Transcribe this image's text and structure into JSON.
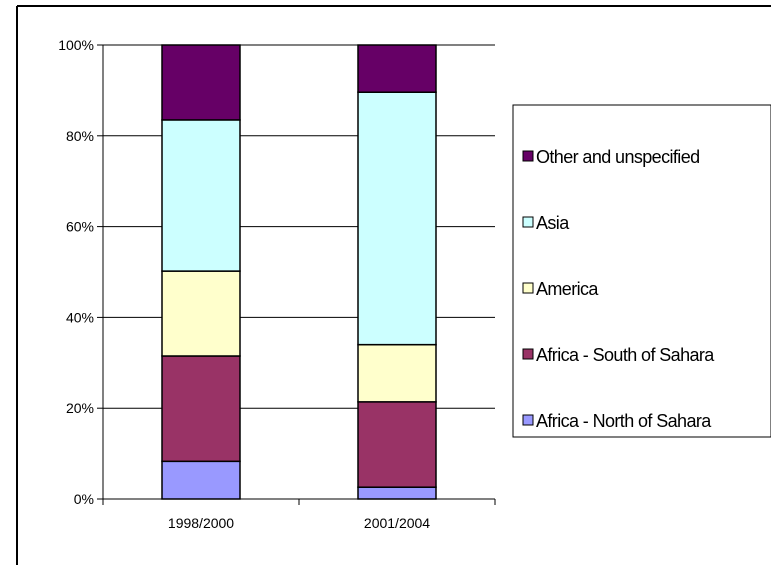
{
  "chart_data": {
    "type": "bar",
    "stacked": true,
    "percent_stacked": true,
    "title": "",
    "xlabel": "",
    "ylabel": "",
    "categories": [
      "1998/2000",
      "2001/2004"
    ],
    "series": [
      {
        "name": "Africa - North of Sahara",
        "values": [
          8.3,
          2.6
        ],
        "color": "#9999ff"
      },
      {
        "name": "Africa - South of Sahara",
        "values": [
          23.2,
          18.8
        ],
        "color": "#993366"
      },
      {
        "name": "America",
        "values": [
          18.7,
          12.6
        ],
        "color": "#ffffcc"
      },
      {
        "name": "Asia",
        "values": [
          33.3,
          55.6
        ],
        "color": "#ccffff"
      },
      {
        "name": "Other and unspecified",
        "values": [
          16.5,
          10.4
        ],
        "color": "#660066"
      }
    ],
    "ylim": [
      0,
      100
    ],
    "yticks": [
      "0%",
      "20%",
      "40%",
      "60%",
      "80%",
      "100%"
    ],
    "grid": true,
    "legend_position": "right",
    "legend_order": [
      "Other and unspecified",
      "Asia",
      "America",
      "Africa - South of Sahara",
      "Africa - North of Sahara"
    ]
  }
}
